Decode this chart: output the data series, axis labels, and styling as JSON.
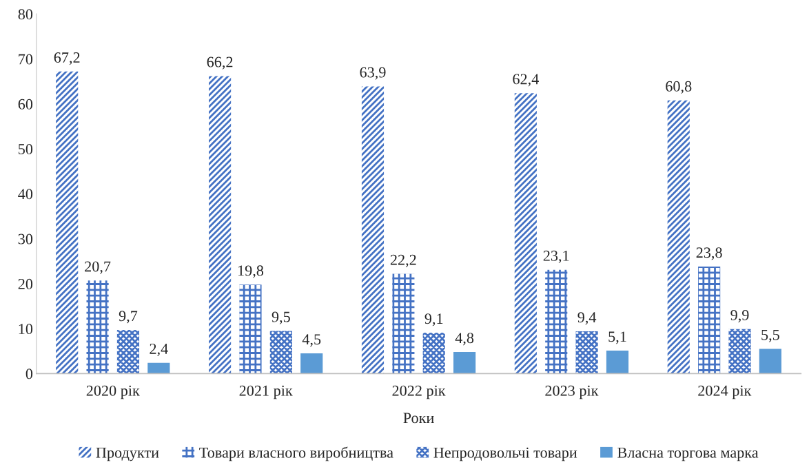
{
  "chart_data": {
    "type": "bar",
    "xlabel": "Роки",
    "categories": [
      "2020 рік",
      "2021 рік",
      "2022 рік",
      "2023 рік",
      "2024 рік"
    ],
    "series": [
      {
        "name": "Продукти",
        "color": "#4472c4",
        "values": [
          67.2,
          66.2,
          63.9,
          62.4,
          60.8
        ],
        "value_labels": [
          "67,2",
          "66,2",
          "63,9",
          "62,4",
          "60,8"
        ]
      },
      {
        "name": "Товари власного виробництва",
        "color": "#4472c4",
        "values": [
          20.7,
          19.8,
          22.2,
          23.1,
          23.8
        ],
        "value_labels": [
          "20,7",
          "19,8",
          "22,2",
          "23,1",
          "23,8"
        ]
      },
      {
        "name": "Непродовольчі товари",
        "color": "#4472c4",
        "values": [
          9.7,
          9.5,
          9.1,
          9.4,
          9.9
        ],
        "value_labels": [
          "9,7",
          "9,5",
          "9,1",
          "9,4",
          "9,9"
        ]
      },
      {
        "name": "Власна торгова марка",
        "color": "#5b9bd5",
        "values": [
          2.4,
          4.5,
          4.8,
          5.1,
          5.5
        ],
        "value_labels": [
          "2,4",
          "4,5",
          "4,8",
          "5,1",
          "5,5"
        ]
      }
    ],
    "ylim": [
      0,
      80
    ],
    "yticks": [
      0,
      10,
      20,
      30,
      40,
      50,
      60,
      70,
      80
    ],
    "legend": "bottom"
  }
}
